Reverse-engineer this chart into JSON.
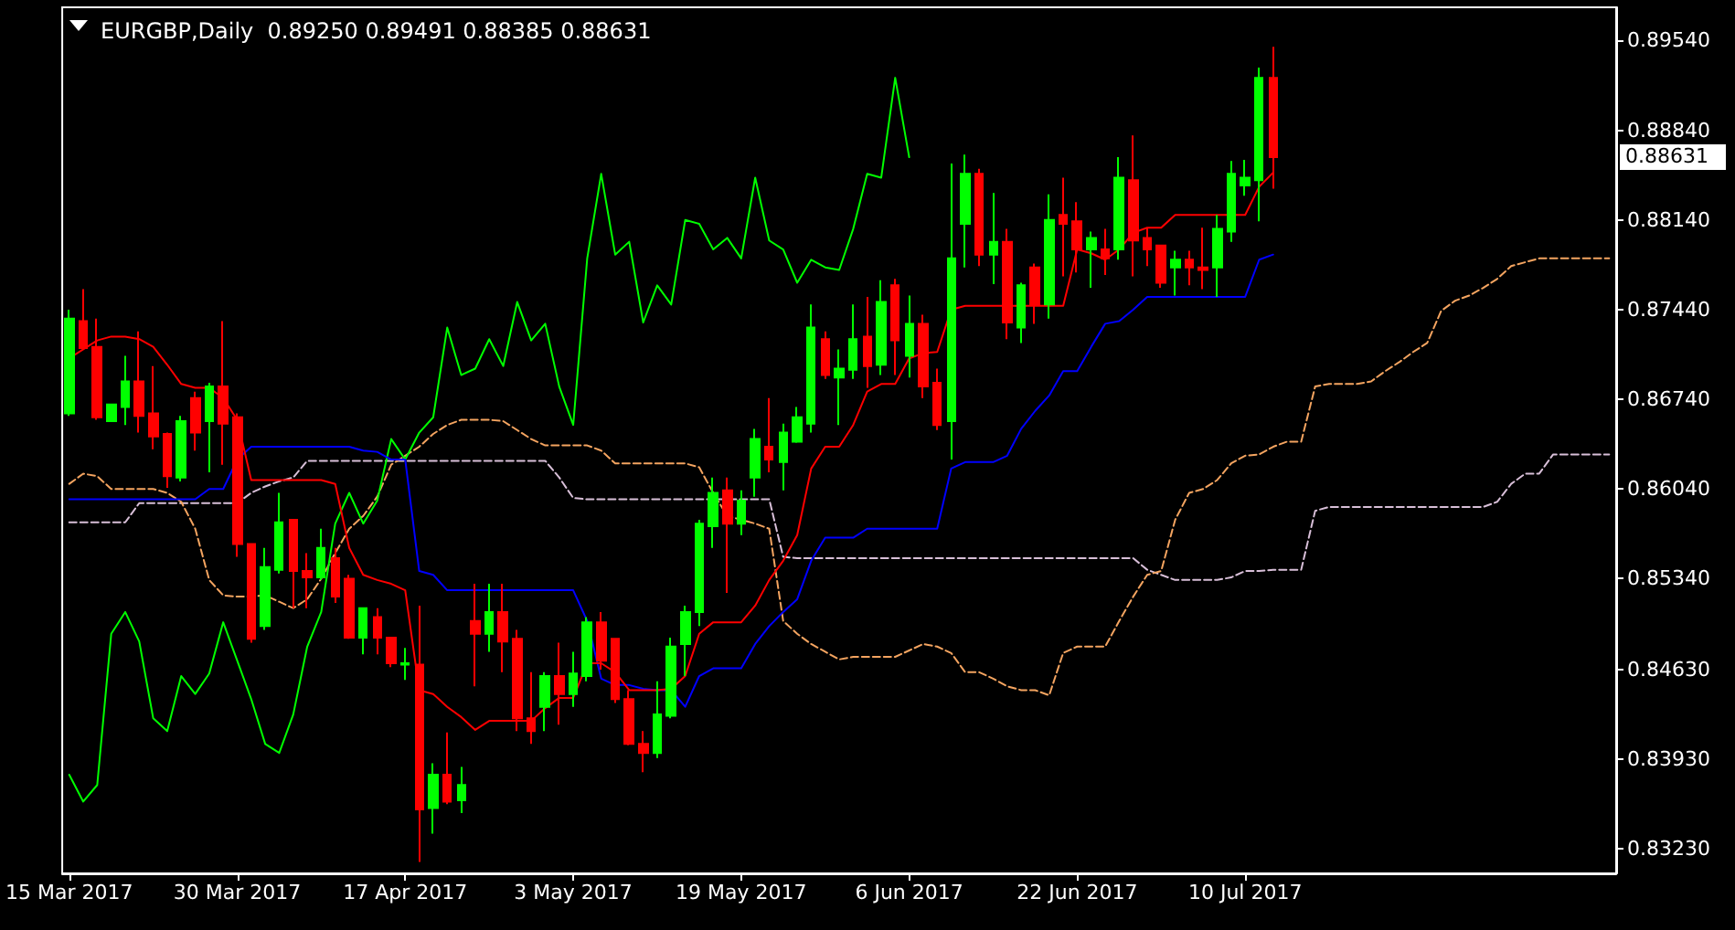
{
  "chart_data": {
    "type": "candlestick",
    "title": "EURGBP,Daily  0.89250 0.89491 0.88385 0.88631",
    "marker": "none",
    "categories": [
      "15 Mar 2017",
      null,
      null,
      null,
      null,
      null,
      null,
      null,
      null,
      null,
      null,
      null,
      "30 Mar 2017",
      null,
      null,
      null,
      null,
      null,
      null,
      null,
      null,
      null,
      null,
      null,
      "17 Apr 2017",
      null,
      null,
      null,
      null,
      null,
      null,
      null,
      null,
      null,
      null,
      null,
      "3 May 2017",
      null,
      null,
      null,
      null,
      null,
      null,
      null,
      null,
      null,
      null,
      null,
      "19 May 2017",
      null,
      null,
      null,
      null,
      null,
      null,
      null,
      null,
      null,
      null,
      null,
      "6 Jun 2017",
      null,
      null,
      null,
      null,
      null,
      null,
      null,
      null,
      null,
      null,
      null,
      "22 Jun 2017",
      null,
      null,
      null,
      null,
      null,
      null,
      null,
      null,
      null,
      null,
      null,
      "10 Jul 2017",
      null,
      null,
      null,
      null,
      null,
      null,
      null,
      null,
      null,
      null,
      null,
      null,
      null,
      null,
      null,
      null,
      null,
      null,
      null,
      null,
      null,
      null,
      null,
      null,
      null,
      null
    ],
    "ylim": [
      0.8304,
      0.898
    ],
    "yticks": [
      {
        "value": 0.8323,
        "label": "0.83230"
      },
      {
        "value": 0.8393,
        "label": "0.83930"
      },
      {
        "value": 0.8463,
        "label": "0.84630"
      },
      {
        "value": 0.8534,
        "label": "0.85340"
      },
      {
        "value": 0.8604,
        "label": "0.86040"
      },
      {
        "value": 0.8674,
        "label": "0.86740"
      },
      {
        "value": 0.8744,
        "label": "0.87440"
      },
      {
        "value": 0.8814,
        "label": "0.88140"
      },
      {
        "value": 0.8884,
        "label": "0.88840"
      },
      {
        "value": 0.8954,
        "label": "0.89540"
      }
    ],
    "annotations": [
      "0.88631"
    ],
    "series": [
      {
        "type": "line",
        "color": "#d8bfd8",
        "line_style": "dashed",
        "values": [
          0.8578,
          0.8578,
          0.8578,
          0.8578,
          0.8578,
          0.8593,
          0.8593,
          0.8593,
          0.8593,
          0.8593,
          0.8593,
          0.8593,
          0.8593,
          0.8601,
          0.8606,
          0.861,
          0.8613,
          0.8626,
          0.8626,
          0.8626,
          0.8626,
          0.8626,
          0.8626,
          0.8626,
          0.8626,
          0.8626,
          0.8626,
          0.8626,
          0.8626,
          0.8626,
          0.8626,
          0.8626,
          0.8626,
          0.8626,
          0.8626,
          0.8613,
          0.8597,
          0.8596,
          0.8596,
          0.8596,
          0.8596,
          0.8596,
          0.8596,
          0.8596,
          0.8596,
          0.8596,
          0.8596,
          0.8596,
          0.8596,
          0.8596,
          0.8596,
          0.8551,
          0.855,
          0.855,
          0.855,
          0.855,
          0.855,
          0.855,
          0.855,
          0.855,
          0.855,
          0.855,
          0.855,
          0.855,
          0.855,
          0.855,
          0.855,
          0.855,
          0.855,
          0.855,
          0.855,
          0.855,
          0.855,
          0.855,
          0.855,
          0.855,
          0.855,
          0.8541,
          0.8537,
          0.8533,
          0.8533,
          0.8533,
          0.8533,
          0.8535,
          0.854,
          0.854,
          0.8541,
          0.8541,
          0.8541,
          0.8587,
          0.859,
          0.859,
          0.859,
          0.859,
          0.859,
          0.859,
          0.859,
          0.859,
          0.859,
          0.859,
          0.859,
          0.859,
          0.8594,
          0.8608,
          0.8616,
          0.8616,
          0.8631,
          0.8631,
          0.8631,
          0.8631,
          0.8631
        ]
      },
      {
        "type": "line",
        "color": "#f4a460",
        "line_style": "dashed",
        "values": [
          0.8608,
          0.8616,
          0.8614,
          0.8604,
          0.8604,
          0.8604,
          0.8604,
          0.8601,
          0.8594,
          0.8573,
          0.8533,
          0.8521,
          0.852,
          0.852,
          0.8521,
          0.8516,
          0.8511,
          0.8518,
          0.8534,
          0.8554,
          0.8573,
          0.8583,
          0.8598,
          0.8623,
          0.863,
          0.8637,
          0.8647,
          0.8654,
          0.8658,
          0.8658,
          0.8658,
          0.8657,
          0.865,
          0.8643,
          0.8638,
          0.8638,
          0.8638,
          0.8638,
          0.8634,
          0.8624,
          0.8624,
          0.8624,
          0.8624,
          0.8624,
          0.8624,
          0.8621,
          0.8601,
          0.8583,
          0.858,
          0.8577,
          0.8573,
          0.8501,
          0.8491,
          0.8483,
          0.8477,
          0.8471,
          0.8473,
          0.8473,
          0.8473,
          0.8473,
          0.8478,
          0.8483,
          0.8481,
          0.8476,
          0.8461,
          0.8461,
          0.8456,
          0.845,
          0.8447,
          0.8447,
          0.8443,
          0.8476,
          0.8481,
          0.8481,
          0.8481,
          0.8501,
          0.852,
          0.8537,
          0.854,
          0.858,
          0.8601,
          0.8604,
          0.8611,
          0.8624,
          0.863,
          0.8631,
          0.8637,
          0.8641,
          0.8641,
          0.8684,
          0.8686,
          0.8686,
          0.8686,
          0.8688,
          0.8696,
          0.8703,
          0.8711,
          0.8718,
          0.8743,
          0.8751,
          0.8755,
          0.8761,
          0.8768,
          0.8778,
          0.8781,
          0.8784,
          0.8784,
          0.8784,
          0.8784,
          0.8784,
          0.8784
        ]
      },
      {
        "type": "line",
        "color": "#00ff00",
        "values": [
          0.8381,
          0.836,
          0.8373,
          0.8491,
          0.8508,
          0.8485,
          0.8425,
          0.8415,
          0.8458,
          0.8444,
          0.846,
          0.85,
          0.847,
          0.844,
          0.8405,
          0.8398,
          0.8428,
          0.8481,
          0.8508,
          0.8577,
          0.8601,
          0.8577,
          0.8595,
          0.8643,
          0.8627,
          0.8648,
          0.866,
          0.873,
          0.8693,
          0.8698,
          0.8721,
          0.87,
          0.875,
          0.872,
          0.8733,
          0.8684,
          0.8654,
          0.8784,
          0.885,
          0.8787,
          0.8797,
          0.8734,
          0.8763,
          0.8748,
          0.8814,
          0.8811,
          0.8791,
          0.88,
          0.8784,
          0.8847,
          0.8798,
          0.8791,
          0.8765,
          0.8783,
          0.8777,
          0.8775,
          0.8807,
          0.885,
          0.8847,
          0.8925,
          0.8863,
          null,
          null,
          null,
          null,
          null,
          null,
          null,
          null,
          null,
          null,
          null,
          null,
          null,
          null,
          null,
          null,
          null,
          null,
          null,
          null,
          null,
          null,
          null,
          null,
          null,
          null,
          null,
          null,
          null,
          null,
          null,
          null,
          null,
          null,
          null,
          null,
          null,
          null,
          null,
          null,
          null,
          null,
          null,
          null,
          null,
          null,
          null,
          null,
          null,
          null
        ]
      },
      {
        "type": "line",
        "color": "#0000ff",
        "values": [
          0.8596,
          0.8596,
          0.8596,
          0.8596,
          0.8596,
          0.8596,
          0.8596,
          0.8596,
          0.8596,
          0.8596,
          0.8604,
          0.8604,
          0.8627,
          0.8637,
          0.8637,
          0.8637,
          0.8637,
          0.8637,
          0.8637,
          0.8637,
          0.8637,
          0.8634,
          0.8633,
          0.8627,
          0.8627,
          0.854,
          0.8537,
          0.8525,
          0.8525,
          0.8525,
          0.8525,
          0.8525,
          0.8525,
          0.8525,
          0.8525,
          0.8525,
          0.8525,
          0.8501,
          0.8456,
          0.8451,
          0.8451,
          0.8448,
          0.8447,
          0.8447,
          0.8434,
          0.8458,
          0.8464,
          0.8464,
          0.8464,
          0.8483,
          0.8497,
          0.8508,
          0.8518,
          0.8548,
          0.8566,
          0.8566,
          0.8566,
          0.8573,
          0.8573,
          0.8573,
          0.8573,
          0.8573,
          0.8573,
          0.862,
          0.8625,
          0.8625,
          0.8625,
          0.863,
          0.8651,
          0.8665,
          0.8677,
          0.8696,
          0.8696,
          0.8715,
          0.8733,
          0.8735,
          0.8744,
          0.8754,
          0.8754,
          0.8754,
          0.8754,
          0.8754,
          0.8754,
          0.8754,
          0.8754,
          0.8783,
          0.8787,
          null,
          null,
          null,
          null,
          null,
          null,
          null,
          null,
          null,
          null,
          null,
          null,
          null,
          null,
          null,
          null,
          null,
          null,
          null,
          null,
          null,
          null,
          null,
          null
        ]
      },
      {
        "type": "line",
        "color": "#ff0000",
        "values": [
          0.8706,
          0.8713,
          0.872,
          0.8723,
          0.8723,
          0.8721,
          0.8715,
          0.8701,
          0.8686,
          0.8683,
          0.8683,
          0.8675,
          0.8658,
          0.8611,
          0.8611,
          0.8611,
          0.8611,
          0.8611,
          0.8611,
          0.8608,
          0.8558,
          0.8537,
          0.8533,
          0.853,
          0.8525,
          0.8447,
          0.8444,
          0.8434,
          0.8426,
          0.8416,
          0.8423,
          0.8423,
          0.8423,
          0.8423,
          0.8433,
          0.8441,
          0.8441,
          0.8468,
          0.8468,
          0.8461,
          0.8447,
          0.8447,
          0.8447,
          0.8448,
          0.8458,
          0.8491,
          0.85,
          0.85,
          0.85,
          0.8513,
          0.8533,
          0.8548,
          0.8568,
          0.862,
          0.8637,
          0.8637,
          0.8654,
          0.868,
          0.8686,
          0.8686,
          0.8706,
          0.871,
          0.8711,
          0.8744,
          0.8747,
          0.8747,
          0.8747,
          0.8747,
          0.8747,
          0.8747,
          0.8747,
          0.8747,
          0.8791,
          0.8788,
          0.8783,
          0.8791,
          0.8804,
          0.8808,
          0.8808,
          0.8818,
          0.8818,
          0.8818,
          0.8818,
          0.8818,
          0.8818,
          0.884,
          0.8851,
          null,
          null,
          null,
          null,
          null,
          null,
          null,
          null,
          null,
          null,
          null,
          null,
          null,
          null,
          null,
          null,
          null,
          null,
          null,
          null,
          null,
          null,
          null,
          null
        ]
      },
      {
        "ohlc": [
          [
            0.8663,
            0.8744,
            0.8661,
            0.8737
          ],
          [
            0.8735,
            0.876,
            0.8713,
            0.8714
          ],
          [
            0.8715,
            0.8737,
            0.8658,
            0.866
          ],
          [
            0.8657,
            0.867,
            0.8657,
            0.867
          ],
          [
            0.8668,
            0.8708,
            0.8654,
            0.8688
          ],
          [
            0.8688,
            0.8727,
            0.8648,
            0.8661
          ],
          [
            0.8663,
            0.87,
            0.8635,
            0.8645
          ],
          [
            0.8647,
            0.8648,
            0.8605,
            0.8614
          ],
          [
            0.8613,
            0.8661,
            0.861,
            0.8657
          ],
          [
            0.8675,
            0.868,
            0.8634,
            0.8648
          ],
          [
            0.8657,
            0.8687,
            0.8617,
            0.8684
          ],
          [
            0.8684,
            0.8735,
            0.8623,
            0.8655
          ],
          [
            0.866,
            0.8663,
            0.8551,
            0.8561
          ],
          [
            0.8561,
            0.8561,
            0.8484,
            0.8487
          ],
          [
            0.8497,
            0.8558,
            0.8494,
            0.8543
          ],
          [
            0.8541,
            0.8601,
            0.8538,
            0.8578
          ],
          [
            0.858,
            0.858,
            0.8511,
            0.854
          ],
          [
            0.854,
            0.8554,
            0.8511,
            0.8535
          ],
          [
            0.8535,
            0.8573,
            0.8533,
            0.8558
          ],
          [
            0.855,
            0.8558,
            0.8515,
            0.852
          ],
          [
            0.8534,
            0.8537,
            0.8487,
            0.8488
          ],
          [
            0.8488,
            0.8511,
            0.8475,
            0.8511
          ],
          [
            0.8504,
            0.8511,
            0.8475,
            0.8488
          ],
          [
            0.8488,
            0.8488,
            0.8465,
            0.8468
          ],
          [
            0.8467,
            0.848,
            0.8455,
            0.8468
          ],
          [
            0.8467,
            0.8513,
            0.8313,
            0.8354
          ],
          [
            0.8355,
            0.839,
            0.8335,
            0.8381
          ],
          [
            0.8381,
            0.8414,
            0.8358,
            0.836
          ],
          [
            0.8361,
            0.8387,
            0.8351,
            0.8373
          ],
          [
            0.8501,
            0.853,
            0.845,
            0.8491
          ],
          [
            0.8491,
            0.853,
            0.8477,
            0.8508
          ],
          [
            0.8508,
            0.853,
            0.8461,
            0.8485
          ],
          [
            0.8487,
            0.8494,
            0.8415,
            0.8425
          ],
          [
            0.8425,
            0.8461,
            0.8405,
            0.8415
          ],
          [
            0.8434,
            0.8461,
            0.8415,
            0.8458
          ],
          [
            0.8458,
            0.8484,
            0.842,
            0.8444
          ],
          [
            0.8444,
            0.8477,
            0.8434,
            0.846
          ],
          [
            0.8458,
            0.8504,
            0.8454,
            0.85
          ],
          [
            0.85,
            0.8508,
            0.8463,
            0.847
          ],
          [
            0.8487,
            0.8487,
            0.8437,
            0.844
          ],
          [
            0.844,
            0.8447,
            0.8404,
            0.8405
          ],
          [
            0.8405,
            0.8415,
            0.8383,
            0.8398
          ],
          [
            0.8398,
            0.8454,
            0.8394,
            0.8428
          ],
          [
            0.8427,
            0.8488,
            0.8425,
            0.8481
          ],
          [
            0.8483,
            0.8513,
            0.8458,
            0.8508
          ],
          [
            0.8508,
            0.858,
            0.8497,
            0.8577
          ],
          [
            0.8575,
            0.8613,
            0.8558,
            0.8601
          ],
          [
            0.8603,
            0.8613,
            0.8523,
            0.8577
          ],
          [
            0.8577,
            0.8603,
            0.8568,
            0.8595
          ],
          [
            0.8613,
            0.8651,
            0.8598,
            0.8643
          ],
          [
            0.8637,
            0.8675,
            0.8617,
            0.8627
          ],
          [
            0.8625,
            0.8655,
            0.8603,
            0.8648
          ],
          [
            0.8641,
            0.8668,
            0.864,
            0.866
          ],
          [
            0.8655,
            0.8748,
            0.8648,
            0.873
          ],
          [
            0.8721,
            0.8727,
            0.869,
            0.8693
          ],
          [
            0.8691,
            0.8713,
            0.8654,
            0.8698
          ],
          [
            0.8697,
            0.8748,
            0.869,
            0.8721
          ],
          [
            0.8723,
            0.8754,
            0.8683,
            0.87
          ],
          [
            0.8701,
            0.8767,
            0.8693,
            0.875
          ],
          [
            0.8763,
            0.8768,
            0.8693,
            0.872
          ],
          [
            0.8708,
            0.8755,
            0.8691,
            0.8733
          ],
          [
            0.8733,
            0.874,
            0.8675,
            0.8684
          ],
          [
            0.8687,
            0.8698,
            0.865,
            0.8654
          ],
          [
            0.8657,
            0.8858,
            0.8627,
            0.8784
          ],
          [
            0.8811,
            0.8865,
            0.8777,
            0.885
          ],
          [
            0.885,
            0.8854,
            0.8778,
            0.8787
          ],
          [
            0.8787,
            0.8835,
            0.8764,
            0.8797
          ],
          [
            0.8797,
            0.8807,
            0.8721,
            0.8734
          ],
          [
            0.873,
            0.8765,
            0.8718,
            0.8763
          ],
          [
            0.8777,
            0.878,
            0.8733,
            0.8748
          ],
          [
            0.8748,
            0.8834,
            0.8737,
            0.8814
          ],
          [
            0.8818,
            0.8847,
            0.877,
            0.8811
          ],
          [
            0.8813,
            0.8828,
            0.8773,
            0.8791
          ],
          [
            0.8791,
            0.8805,
            0.8761,
            0.88
          ],
          [
            0.8791,
            0.8807,
            0.8771,
            0.8784
          ],
          [
            0.8791,
            0.8863,
            0.8783,
            0.8847
          ],
          [
            0.8845,
            0.888,
            0.877,
            0.8798
          ],
          [
            0.88,
            0.8808,
            0.8778,
            0.8791
          ],
          [
            0.8794,
            0.8794,
            0.8761,
            0.8765
          ],
          [
            0.8777,
            0.879,
            0.8755,
            0.8783
          ],
          [
            0.8783,
            0.879,
            0.8763,
            0.8777
          ],
          [
            0.8777,
            0.8808,
            0.876,
            0.8775
          ],
          [
            0.8777,
            0.8818,
            0.8754,
            0.8807
          ],
          [
            0.8805,
            0.886,
            0.8797,
            0.885
          ],
          [
            0.8841,
            0.8861,
            0.8833,
            0.8847
          ],
          [
            0.8845,
            0.8933,
            0.8813,
            0.8925
          ],
          [
            0.8925,
            0.89491,
            0.88385,
            0.88631
          ],
          null,
          null,
          null,
          null,
          null,
          null,
          null,
          null,
          null,
          null,
          null,
          null,
          null,
          null,
          null,
          null,
          null,
          null,
          null,
          null,
          null,
          null,
          null,
          null
        ],
        "colors": [
          "#00ff00",
          "#ff0000",
          "#ff0000",
          "#00ff00",
          "#00ff00",
          "#ff0000",
          "#ff0000",
          "#ff0000",
          "#00ff00",
          "#ff0000",
          "#00ff00",
          "#ff0000",
          "#ff0000",
          "#ff0000",
          "#00ff00",
          "#00ff00",
          "#ff0000",
          "#ff0000",
          "#00ff00",
          "#ff0000",
          "#ff0000",
          "#00ff00",
          "#ff0000",
          "#ff0000",
          "#00ff00",
          "#ff0000",
          "#00ff00",
          "#ff0000",
          "#00ff00",
          "#ff0000",
          "#00ff00",
          "#ff0000",
          "#ff0000",
          "#ff0000",
          "#00ff00",
          "#ff0000",
          "#00ff00",
          "#00ff00",
          "#ff0000",
          "#ff0000",
          "#ff0000",
          "#ff0000",
          "#00ff00",
          "#00ff00",
          "#00ff00",
          "#00ff00",
          "#00ff00",
          "#ff0000",
          "#00ff00",
          "#00ff00",
          "#ff0000",
          "#00ff00",
          "#00ff00",
          "#00ff00",
          "#ff0000",
          "#00ff00",
          "#00ff00",
          "#ff0000",
          "#00ff00",
          "#ff0000",
          "#00ff00",
          "#ff0000",
          "#ff0000",
          "#00ff00",
          "#00ff00",
          "#ff0000",
          "#00ff00",
          "#ff0000",
          "#00ff00",
          "#ff0000",
          "#00ff00",
          "#ff0000",
          "#ff0000",
          "#00ff00",
          "#ff0000",
          "#00ff00",
          "#ff0000",
          "#ff0000",
          "#ff0000",
          "#00ff00",
          "#ff0000",
          "#ff0000",
          "#00ff00",
          "#00ff00",
          "#00ff00",
          "#00ff00",
          "#ff0000",
          null,
          null,
          null,
          null,
          null,
          null,
          null,
          null,
          null,
          null,
          null,
          null,
          null,
          null,
          null,
          null,
          null,
          null,
          null,
          null,
          null,
          null,
          null,
          null
        ]
      }
    ]
  }
}
